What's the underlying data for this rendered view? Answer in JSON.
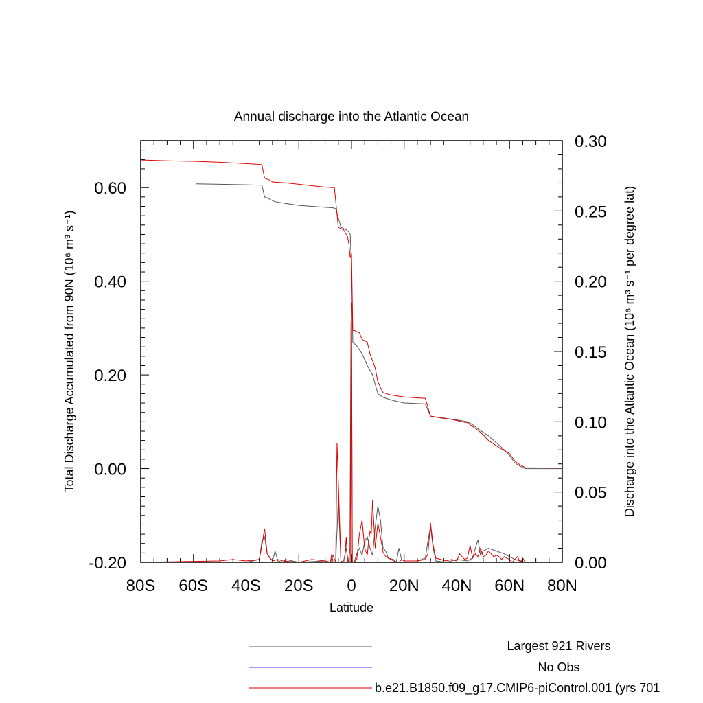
{
  "chart_data": {
    "type": "line",
    "title": "Annual discharge into the Atlantic Ocean",
    "xlabel": "Latitude",
    "ylabel_left": "Total Discharge Accumulated from 90N (10⁶ m³ s⁻¹)",
    "ylabel_right": "Discharge into the Atlantic Ocean (10⁶ m³ s⁻¹ per degree lat)",
    "xlim": [
      -80,
      80
    ],
    "ylim_left": [
      -0.2,
      0.7
    ],
    "ylim_right": [
      0.0,
      0.3
    ],
    "x_ticks": [
      {
        "value": -80,
        "label": "80S"
      },
      {
        "value": -60,
        "label": "60S"
      },
      {
        "value": -40,
        "label": "40S"
      },
      {
        "value": -20,
        "label": "20S"
      },
      {
        "value": 0,
        "label": "0"
      },
      {
        "value": 20,
        "label": "20N"
      },
      {
        "value": 40,
        "label": "40N"
      },
      {
        "value": 60,
        "label": "60N"
      },
      {
        "value": 80,
        "label": "80N"
      }
    ],
    "y_left_ticks": [
      {
        "value": -0.2,
        "label": "-0.20"
      },
      {
        "value": 0.0,
        "label": "0.00"
      },
      {
        "value": 0.2,
        "label": "0.20"
      },
      {
        "value": 0.4,
        "label": "0.40"
      },
      {
        "value": 0.6,
        "label": "0.60"
      }
    ],
    "y_right_ticks": [
      {
        "value": 0.0,
        "label": "0.00"
      },
      {
        "value": 0.05,
        "label": "0.05"
      },
      {
        "value": 0.1,
        "label": "0.10"
      },
      {
        "value": 0.15,
        "label": "0.15"
      },
      {
        "value": 0.2,
        "label": "0.20"
      },
      {
        "value": 0.25,
        "label": "0.25"
      },
      {
        "value": 0.3,
        "label": "0.30"
      }
    ],
    "series": [
      {
        "name": "Largest 921 Rivers",
        "color": "#555555",
        "axis": "left",
        "x": [
          -59,
          -50,
          -40,
          -34,
          -33,
          -32,
          -30,
          -29,
          -25,
          -20,
          -15,
          -10,
          -7,
          -6,
          -4,
          -2,
          -1,
          -0.5,
          0,
          0.5,
          2,
          4,
          6,
          8,
          10,
          12,
          16,
          20,
          28,
          30,
          35,
          40,
          44,
          46,
          48,
          52,
          55,
          58,
          60,
          62,
          64,
          66,
          70,
          80
        ],
        "y": [
          0.608,
          0.607,
          0.606,
          0.605,
          0.58,
          0.578,
          0.572,
          0.57,
          0.566,
          0.562,
          0.56,
          0.558,
          0.557,
          0.555,
          0.515,
          0.51,
          0.505,
          0.5,
          0.43,
          0.27,
          0.262,
          0.245,
          0.22,
          0.2,
          0.16,
          0.152,
          0.145,
          0.14,
          0.138,
          0.112,
          0.108,
          0.104,
          0.1,
          0.094,
          0.085,
          0.07,
          0.055,
          0.04,
          0.028,
          0.012,
          0.005,
          0.0,
          0.0,
          0.0
        ]
      },
      {
        "name": "No Obs",
        "color": "#4040ff",
        "axis": "left",
        "x": [],
        "y": []
      },
      {
        "name": "b.e21.B1850.f09_g17.CMIP6-piControl.001 (yrs 701",
        "color": "#e00000",
        "axis": "left",
        "x": [
          -80,
          -70,
          -60,
          -50,
          -40,
          -34,
          -33,
          -31,
          -30,
          -25,
          -20,
          -15,
          -10,
          -7,
          -6.5,
          -5,
          -3,
          -1.5,
          -1,
          -0.5,
          0,
          0.5,
          1,
          3,
          4,
          6,
          7,
          8,
          9,
          10,
          12,
          15,
          20,
          28,
          30,
          34,
          38,
          42,
          44,
          46,
          48,
          50,
          52,
          56,
          60,
          62,
          64,
          66,
          80
        ],
        "y": [
          0.659,
          0.657,
          0.656,
          0.654,
          0.651,
          0.649,
          0.62,
          0.616,
          0.612,
          0.61,
          0.607,
          0.604,
          0.601,
          0.6,
          0.6,
          0.515,
          0.51,
          0.495,
          0.48,
          0.45,
          0.46,
          0.295,
          0.295,
          0.29,
          0.276,
          0.27,
          0.245,
          0.23,
          0.215,
          0.185,
          0.162,
          0.157,
          0.153,
          0.15,
          0.112,
          0.108,
          0.105,
          0.1,
          0.098,
          0.09,
          0.082,
          0.072,
          0.06,
          0.045,
          0.032,
          0.016,
          0.008,
          0.002,
          0.001
        ]
      },
      {
        "name": "Largest 921 Rivers (per degree lat)",
        "color": "#555555",
        "axis": "right",
        "x": [
          -80,
          -40,
          -35,
          -34,
          -33,
          -32,
          -30,
          -29,
          -28,
          -26,
          -25,
          -20,
          -10,
          -8,
          -7,
          -6,
          -5,
          -4,
          -3,
          -2,
          -1.2,
          -0.6,
          -0.2,
          0,
          0.3,
          0.6,
          1,
          2,
          3,
          4,
          5,
          6,
          7,
          8,
          9,
          10,
          11,
          12,
          13,
          14,
          16,
          17,
          18,
          19,
          20,
          25,
          28,
          29,
          30,
          31,
          32,
          36,
          40,
          44,
          46,
          47,
          48,
          49,
          50,
          52,
          55,
          58,
          60,
          62,
          64,
          66,
          80
        ],
        "y": [
          0.0,
          0.0,
          0.002,
          0.015,
          0.018,
          0.006,
          0.001,
          0.008,
          0.001,
          0.0,
          0.002,
          0.0,
          0.001,
          0.0,
          0.005,
          0.0,
          0.045,
          0.0,
          0.001,
          0.01,
          0.0,
          0.01,
          0.17,
          0.175,
          0.0,
          0.0,
          0.0,
          0.006,
          0.01,
          0.005,
          0.015,
          0.018,
          0.01,
          0.005,
          0.025,
          0.04,
          0.03,
          0.01,
          0.008,
          0.003,
          0.002,
          0.0,
          0.01,
          0.002,
          0.001,
          0.001,
          0.003,
          0.015,
          0.025,
          0.01,
          0.001,
          0.0,
          0.002,
          0.001,
          0.003,
          0.01,
          0.016,
          0.005,
          0.008,
          0.01,
          0.008,
          0.006,
          0.004,
          0.002,
          0.001,
          0.0,
          0.0
        ]
      },
      {
        "name": "b.e21.B1850.f09_g17.CMIP6-piControl.001 (yrs 701 (per degree lat)",
        "color": "#e00000",
        "axis": "right",
        "x": [
          -80,
          -50,
          -45,
          -40,
          -35,
          -34,
          -33,
          -32,
          -31,
          -30,
          -28,
          -26,
          -20,
          -15,
          -10,
          -8,
          -7.5,
          -7,
          -6.5,
          -6,
          -5.5,
          -4,
          -3,
          -2.6,
          -2,
          -1.5,
          -1.2,
          -0.8,
          -0.5,
          -0.2,
          0,
          0.3,
          0.6,
          1,
          2,
          3,
          4,
          5,
          6,
          6.5,
          7,
          7.5,
          8,
          9,
          10,
          11,
          12,
          13,
          14,
          15,
          17,
          18,
          19,
          20,
          25,
          28,
          29,
          30,
          31,
          32,
          36,
          38,
          40,
          41,
          42,
          43,
          44,
          45,
          46,
          47,
          48,
          49,
          50,
          51,
          52,
          53,
          54,
          55,
          56,
          57,
          58,
          59,
          60,
          61,
          62,
          63,
          64,
          65,
          66,
          80
        ],
        "y": [
          0.0,
          0.001,
          0.002,
          0.001,
          0.002,
          0.012,
          0.024,
          0.006,
          0.003,
          0.001,
          0.002,
          0.001,
          0.0,
          0.002,
          0.001,
          0.0,
          0.006,
          0.0,
          0.0,
          0.0,
          0.085,
          0.001,
          0.0,
          0.0,
          0.018,
          0.0,
          0.0,
          0.0,
          0.0,
          0.12,
          0.185,
          0.0,
          0.0,
          0.0,
          0.002,
          0.02,
          0.03,
          0.01,
          0.005,
          0.015,
          0.022,
          0.02,
          0.044,
          0.01,
          0.028,
          0.018,
          0.007,
          0.004,
          0.003,
          0.002,
          0.0,
          0.0,
          0.002,
          0.001,
          0.001,
          0.002,
          0.006,
          0.028,
          0.012,
          0.003,
          0.001,
          0.002,
          0.001,
          0.006,
          0.004,
          0.002,
          0.003,
          0.012,
          0.003,
          0.006,
          0.004,
          0.01,
          0.004,
          0.005,
          0.008,
          0.006,
          0.004,
          0.005,
          0.004,
          0.002,
          0.004,
          0.003,
          0.002,
          0.0,
          0.002,
          0.004,
          0.0,
          0.003,
          0.0,
          0.0
        ]
      }
    ],
    "legend": {
      "placement": "bottom",
      "entries": [
        {
          "label": "Largest 921 Rivers",
          "color": "#555555"
        },
        {
          "label": "No Obs",
          "color": "#4040ff"
        },
        {
          "label": "b.e21.B1850.f09_g17.CMIP6-piControl.001 (yrs 701",
          "color": "#e00000"
        }
      ]
    }
  }
}
